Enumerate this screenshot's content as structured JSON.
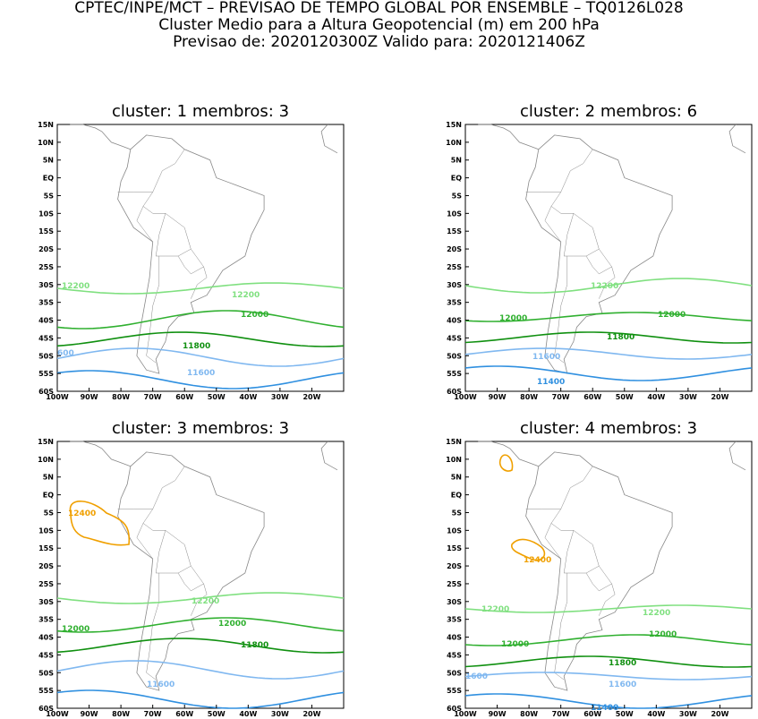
{
  "header": {
    "line1": "CPTEC/INPE/MCT – PREVISAO DE TEMPO GLOBAL POR ENSEMBLE – TQ0126L028",
    "line2": "Cluster Medio para a Altura Geopotencial (m) em 200 hPa",
    "line3": "Previsao de: 2020120300Z    Valido para: 2020121406Z"
  },
  "lat_ticks": [
    "15N",
    "10N",
    "5N",
    "EQ",
    "5S",
    "10S",
    "15S",
    "20S",
    "25S",
    "30S",
    "35S",
    "40S",
    "45S",
    "50S",
    "55S",
    "60S"
  ],
  "lon_ticks": [
    "100W",
    "90W",
    "80W",
    "70W",
    "60W",
    "50W",
    "40W",
    "30W",
    "20W"
  ],
  "colors": {
    "c12400": "#f0a000",
    "c12200": "#80e080",
    "c12000": "#30b030",
    "c11800": "#109010",
    "c11600": "#80b8f0",
    "c11400": "#3090e0",
    "c11200": "#1060c0",
    "coast": "#888888"
  },
  "panels": [
    {
      "title": "cluster: 1   membros: 3",
      "labels": [
        "12200",
        "12200",
        "12000",
        "11800",
        "11600",
        "600"
      ]
    },
    {
      "title": "cluster: 2   membros: 6",
      "labels": [
        "12200",
        "12000",
        "12000",
        "11800",
        "11600",
        "11400"
      ]
    },
    {
      "title": "cluster: 3   membros: 3",
      "labels": [
        "12400",
        "12200",
        "12000",
        "12000",
        "11800",
        "11600"
      ]
    },
    {
      "title": "cluster: 4   membros: 3",
      "labels": [
        "12400",
        "12200",
        "12200",
        "12000",
        "12000",
        "11800",
        "11600",
        "1600",
        "11400"
      ]
    }
  ]
}
